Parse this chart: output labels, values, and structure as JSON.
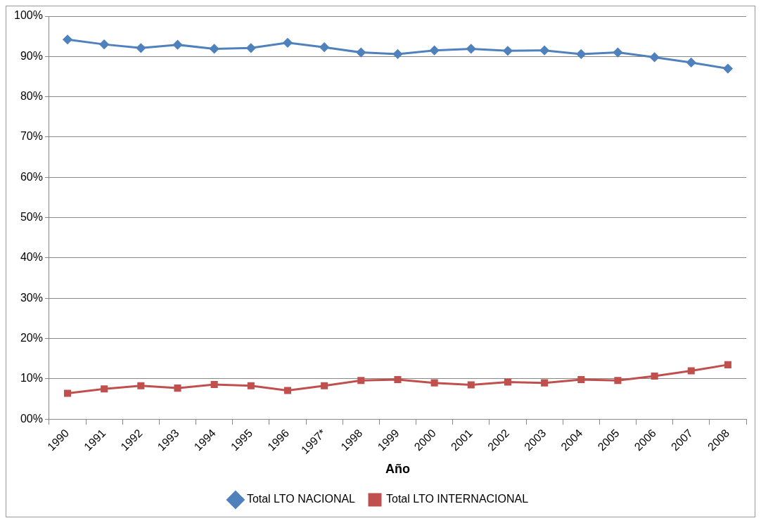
{
  "chart_data": {
    "type": "line",
    "xlabel": "Año",
    "categories": [
      "1990",
      "1991",
      "1992",
      "1993",
      "1994",
      "1995",
      "1996",
      "1997*",
      "1998",
      "1999",
      "2000",
      "2001",
      "2002",
      "2003",
      "2004",
      "2005",
      "2006",
      "2007",
      "2008"
    ],
    "series": [
      {
        "name": "Total LTO NACIONAL",
        "color": "#4f81bd",
        "marker": "diamond",
        "values": [
          94.2,
          93.0,
          92.1,
          92.9,
          91.9,
          92.1,
          93.4,
          92.3,
          91.0,
          90.6,
          91.5,
          91.9,
          91.4,
          91.5,
          90.6,
          91.0,
          89.8,
          88.5,
          87.0
        ]
      },
      {
        "name": "Total LTO INTERNACIONAL",
        "color": "#c0504d",
        "marker": "square",
        "values": [
          6.4,
          7.5,
          8.3,
          7.7,
          8.6,
          8.3,
          7.1,
          8.3,
          9.6,
          9.8,
          9.0,
          8.5,
          9.2,
          9.0,
          9.8,
          9.6,
          10.7,
          12.0,
          13.5
        ]
      }
    ],
    "ylim": [
      0,
      100
    ],
    "yticks": [
      {
        "value": 0,
        "label": "00%"
      },
      {
        "value": 10,
        "label": "10%"
      },
      {
        "value": 20,
        "label": "20%"
      },
      {
        "value": 30,
        "label": "30%"
      },
      {
        "value": 40,
        "label": "40%"
      },
      {
        "value": 50,
        "label": "50%"
      },
      {
        "value": 60,
        "label": "60%"
      },
      {
        "value": 70,
        "label": "70%"
      },
      {
        "value": 80,
        "label": "80%"
      },
      {
        "value": 90,
        "label": "90%"
      },
      {
        "value": 100,
        "label": "100%"
      }
    ],
    "grid": "y",
    "legend": "bottom",
    "line_style": "solid"
  }
}
